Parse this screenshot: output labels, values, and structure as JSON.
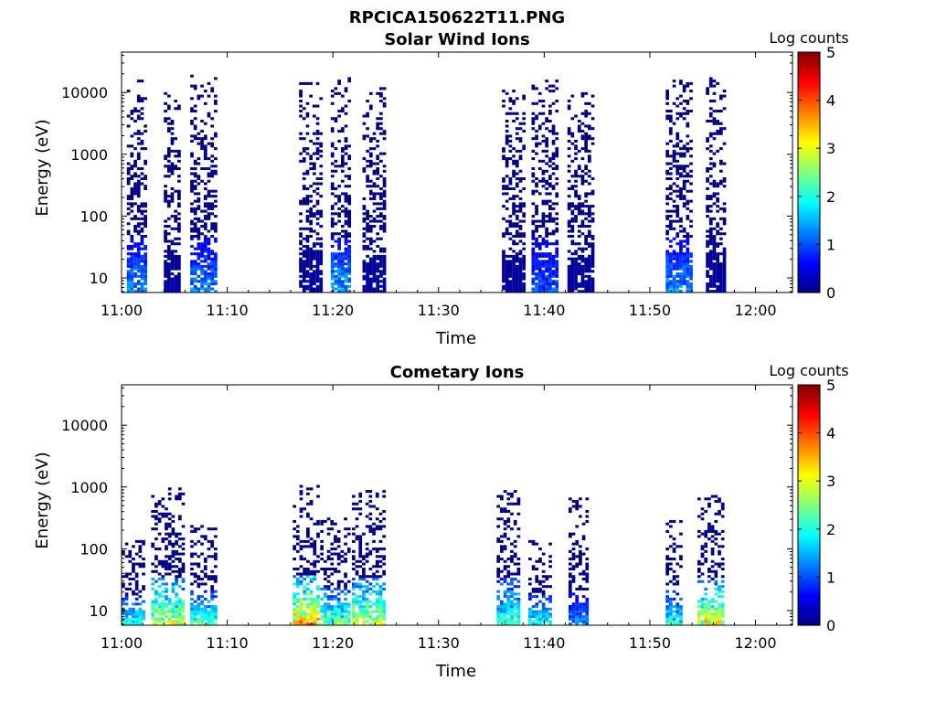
{
  "figure": {
    "title": "RPCICA150622T11.PNG"
  },
  "chart_data": [
    {
      "type": "heatmap",
      "title": "Solar Wind Ions",
      "xlabel": "Time",
      "ylabel": "Energy (eV)",
      "x_ticks": [
        "11:00",
        "11:10",
        "11:20",
        "11:30",
        "11:40",
        "11:50",
        "12:00"
      ],
      "x_range_minutes": [
        0,
        63.5
      ],
      "y_ticks": [
        10,
        100,
        1000,
        10000
      ],
      "y_tick_labels": [
        "10",
        "100",
        "1000",
        "10000"
      ],
      "y_scale": "log",
      "ylim": [
        5.8,
        45000
      ],
      "colorbar": {
        "label": "Log counts",
        "range": [
          0,
          5
        ],
        "ticks": [
          "0",
          "1",
          "2",
          "3",
          "4",
          "5"
        ]
      },
      "bursts": [
        {
          "t_start": 0.5,
          "t_end": 2.3,
          "e_max": 16000,
          "peak": 1.5
        },
        {
          "t_start": 4.0,
          "t_end": 5.5,
          "e_max": 9000,
          "peak": 0.2
        },
        {
          "t_start": 6.5,
          "t_end": 8.8,
          "e_max": 17000,
          "peak": 1.5
        },
        {
          "t_start": 16.8,
          "t_end": 18.8,
          "e_max": 15000,
          "peak": 0.2
        },
        {
          "t_start": 19.8,
          "t_end": 21.5,
          "e_max": 16000,
          "peak": 1.7
        },
        {
          "t_start": 22.8,
          "t_end": 24.8,
          "e_max": 12000,
          "peak": 0.2
        },
        {
          "t_start": 36.0,
          "t_end": 38.0,
          "e_max": 10000,
          "peak": 0.2
        },
        {
          "t_start": 38.8,
          "t_end": 41.3,
          "e_max": 17000,
          "peak": 1.2
        },
        {
          "t_start": 42.2,
          "t_end": 44.5,
          "e_max": 9000,
          "peak": 0.2
        },
        {
          "t_start": 51.5,
          "t_end": 53.8,
          "e_max": 15000,
          "peak": 1.6
        },
        {
          "t_start": 55.3,
          "t_end": 57.0,
          "e_max": 16000,
          "peak": 0.2
        }
      ]
    },
    {
      "type": "heatmap",
      "title": "Cometary Ions",
      "xlabel": "Time",
      "ylabel": "Energy (eV)",
      "x_ticks": [
        "11:00",
        "11:10",
        "11:20",
        "11:30",
        "11:40",
        "11:50",
        "12:00"
      ],
      "x_range_minutes": [
        0,
        63.5
      ],
      "y_ticks": [
        10,
        100,
        1000,
        10000
      ],
      "y_tick_labels": [
        "10",
        "100",
        "1000",
        "10000"
      ],
      "y_scale": "log",
      "ylim": [
        5.8,
        45000
      ],
      "colorbar": {
        "label": "Log counts",
        "range": [
          0,
          5
        ],
        "ticks": [
          "0",
          "1",
          "2",
          "3",
          "4",
          "5"
        ]
      },
      "bursts": [
        {
          "t_start": 0.0,
          "t_end": 2.0,
          "e_max": 130,
          "peak": 2.3
        },
        {
          "t_start": 2.8,
          "t_end": 5.8,
          "e_max": 900,
          "peak": 3.3
        },
        {
          "t_start": 6.5,
          "t_end": 8.8,
          "e_max": 230,
          "peak": 2.5
        },
        {
          "t_start": 16.2,
          "t_end": 18.5,
          "e_max": 1100,
          "peak": 4.0
        },
        {
          "t_start": 18.8,
          "t_end": 21.5,
          "e_max": 300,
          "peak": 2.8
        },
        {
          "t_start": 21.8,
          "t_end": 24.8,
          "e_max": 900,
          "peak": 3.3
        },
        {
          "t_start": 35.5,
          "t_end": 37.5,
          "e_max": 900,
          "peak": 2.5
        },
        {
          "t_start": 38.5,
          "t_end": 40.5,
          "e_max": 130,
          "peak": 2.2
        },
        {
          "t_start": 42.3,
          "t_end": 44.0,
          "e_max": 600,
          "peak": 1.5
        },
        {
          "t_start": 51.5,
          "t_end": 53.0,
          "e_max": 300,
          "peak": 2.2
        },
        {
          "t_start": 54.5,
          "t_end": 57.0,
          "e_max": 700,
          "peak": 3.5
        }
      ]
    }
  ]
}
